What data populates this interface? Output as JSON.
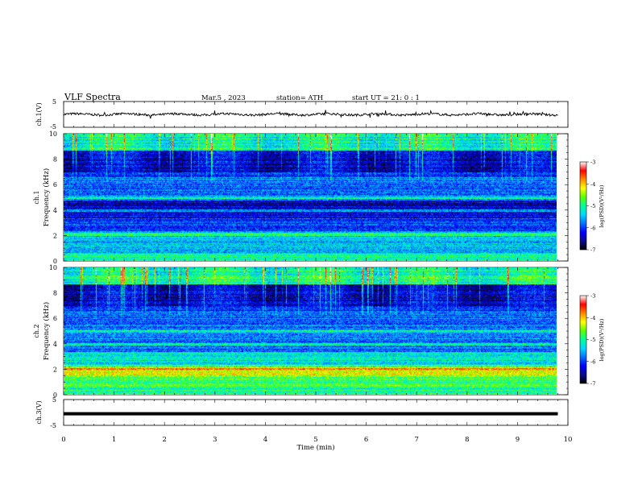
{
  "header": {
    "title": "VLF  Spectra",
    "date": "Mar.5  , 2023",
    "station": "station= ATH",
    "start": "start  UT  =   21: 0  : 1"
  },
  "chart_data": [
    {
      "type": "line",
      "id": "ch1",
      "ylabel": "ch.1(V)",
      "ylim": [
        -5,
        5
      ],
      "yticks": [
        "5",
        "-5"
      ],
      "xlim": [
        0,
        10
      ],
      "trace_level": 0,
      "trace_end_min": 9.8,
      "grid": false
    },
    {
      "type": "heatmap",
      "id": "ch1-spec",
      "title_axis": "ch.1",
      "ylabel": "Frequency  (kHz)",
      "ylim": [
        0,
        10
      ],
      "yticks": [
        "0",
        "2",
        "4",
        "6",
        "8",
        "10"
      ],
      "xlim": [
        0,
        10
      ],
      "data_end_min": 9.8,
      "colorbar": {
        "label": "log(PSD)(V²/Hz)",
        "ticks": [
          "-3",
          "-4",
          "-5",
          "-6",
          "-7"
        ],
        "range": [
          -7,
          -3
        ]
      }
    },
    {
      "type": "heatmap",
      "id": "ch2-spec",
      "title_axis": "ch.2",
      "ylabel": "Frequency  (kHz)",
      "ylim": [
        0,
        10
      ],
      "yticks": [
        "0",
        "2",
        "4",
        "6",
        "8",
        "10"
      ],
      "xlim": [
        0,
        10
      ],
      "data_end_min": 9.8,
      "colorbar": {
        "label": "log(PSD)(V²/Hz)",
        "ticks": [
          "-3",
          "-4",
          "-5",
          "-6",
          "-7"
        ],
        "range": [
          -7,
          -3
        ]
      }
    },
    {
      "type": "line",
      "id": "ch3",
      "ylabel": "ch.3(V)",
      "ylim": [
        -5,
        5
      ],
      "yticks": [
        "5",
        "-5"
      ],
      "xlim": [
        0,
        10
      ],
      "trace_level": -0.5,
      "trace_end_min": 9.8,
      "xlabel": "Time  (min)",
      "xticks": [
        "0",
        "1",
        "2",
        "3",
        "4",
        "5",
        "6",
        "7",
        "8",
        "9",
        "10"
      ]
    }
  ],
  "colors": {
    "colormap": [
      "#000000",
      "#0a0a8c",
      "#0000ff",
      "#0070ff",
      "#00d8ff",
      "#00ff9c",
      "#5cff00",
      "#ffff00",
      "#ff8800",
      "#ff0000",
      "#ffffff"
    ]
  }
}
